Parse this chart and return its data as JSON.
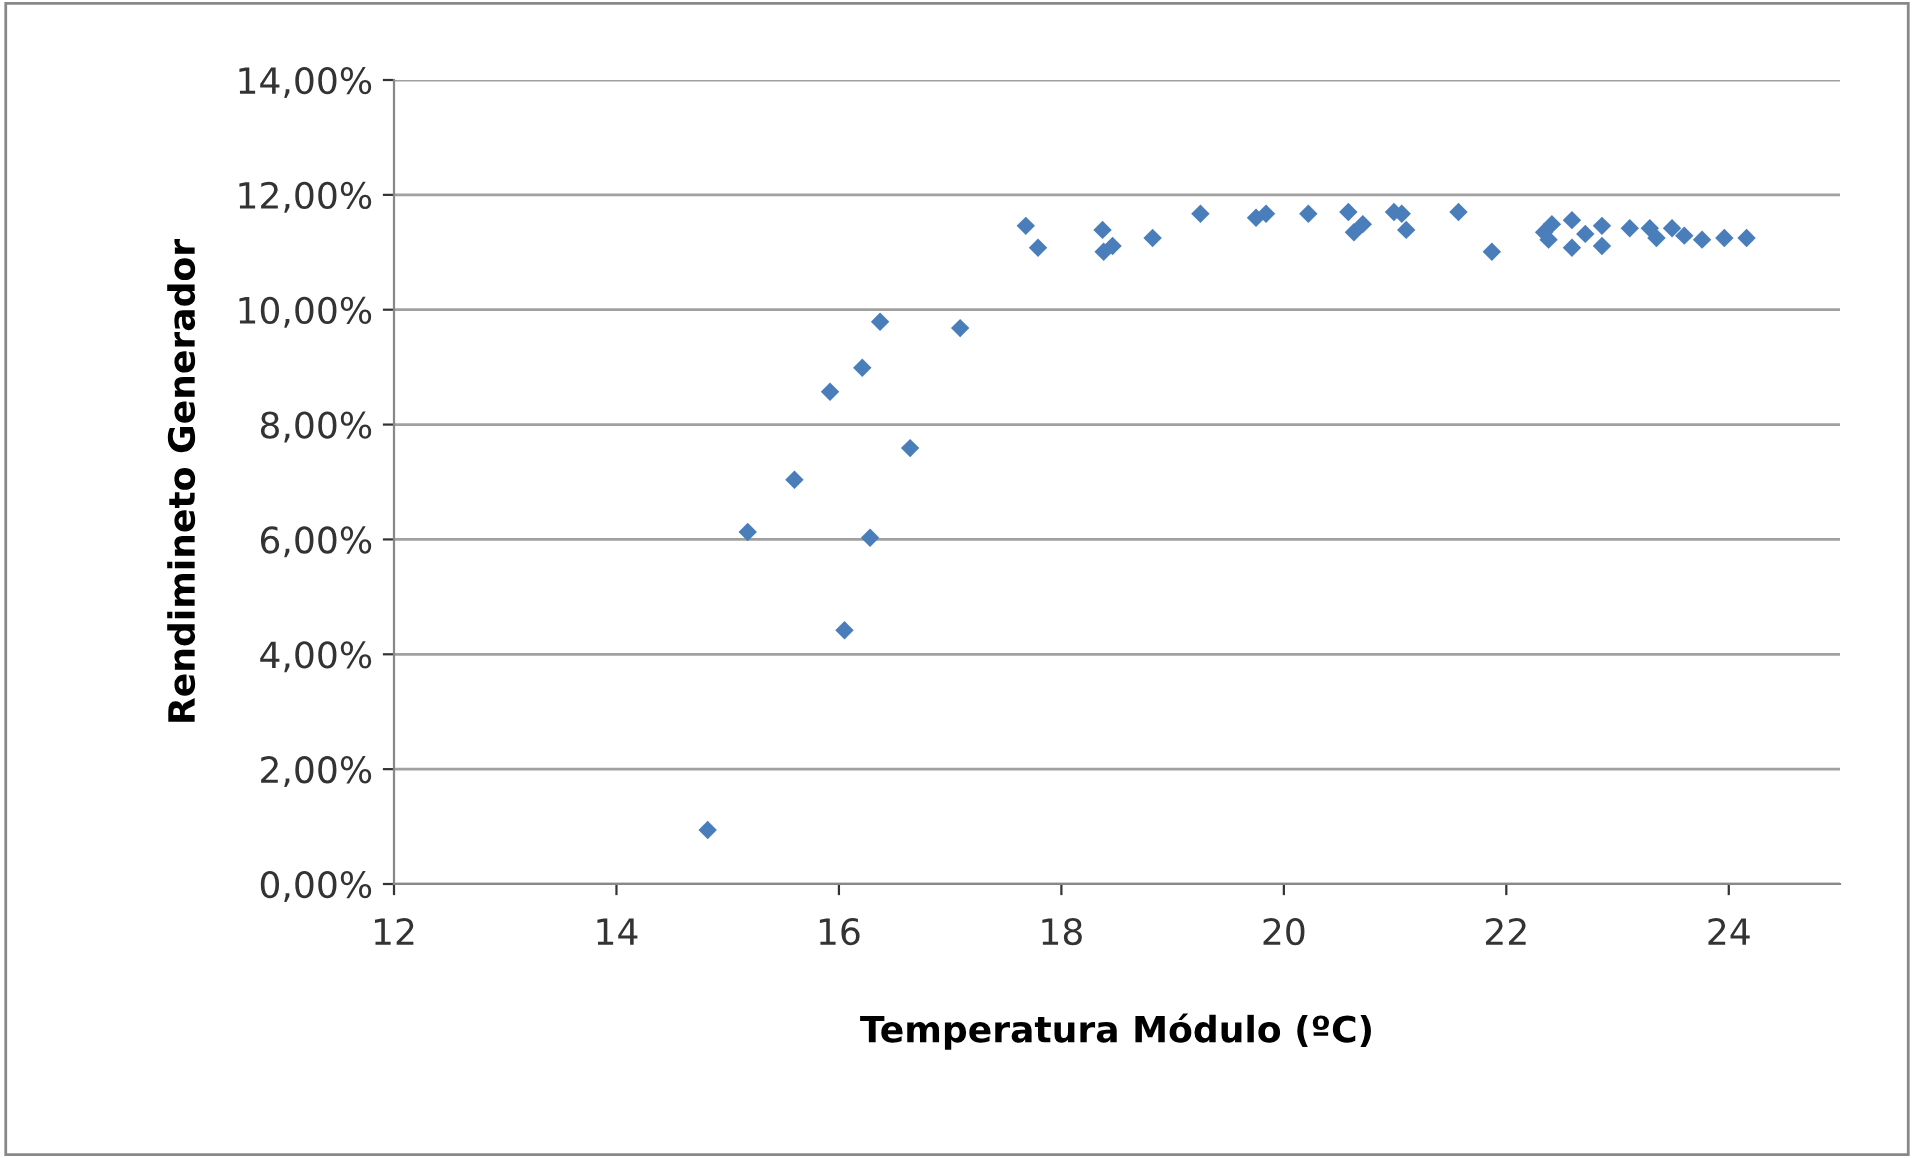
{
  "chart_data": {
    "type": "scatter",
    "xlabel": "Temperatura Módulo (ºC)",
    "ylabel": "Rendimineto Generador",
    "marker": "diamond",
    "grid": "y",
    "legend": false,
    "xlim": [
      12,
      25
    ],
    "xticks": [
      12,
      14,
      16,
      18,
      20,
      22,
      24
    ],
    "ylim": [
      0,
      14
    ],
    "yticks": [
      {
        "value": 0,
        "label": "0,00%"
      },
      {
        "value": 2,
        "label": "2,00%"
      },
      {
        "value": 4,
        "label": "4,00%"
      },
      {
        "value": 6,
        "label": "6,00%"
      },
      {
        "value": 8,
        "label": "8,00%"
      },
      {
        "value": 10,
        "label": "10,00%"
      },
      {
        "value": 12,
        "label": "12,00%"
      },
      {
        "value": 14,
        "label": "14,00%"
      }
    ],
    "series": [
      {
        "color": "#4a7ebb",
        "x": [
          14.82,
          15.18,
          15.6,
          15.92,
          16.05,
          16.21,
          16.28,
          16.37,
          16.64,
          17.09,
          17.68,
          17.79,
          18.37,
          18.38,
          18.46,
          18.82,
          19.25,
          19.75,
          19.84,
          20.22,
          20.58,
          20.63,
          20.71,
          20.99,
          21.06,
          21.1,
          21.57,
          21.87,
          22.34,
          22.41,
          22.38,
          22.59,
          22.59,
          22.71,
          22.86,
          22.86,
          23.11,
          23.29,
          23.35,
          23.49,
          23.6,
          23.76,
          23.96,
          24.16
        ],
        "values": [
          0.94,
          6.13,
          7.04,
          8.57,
          4.42,
          8.99,
          6.03,
          9.79,
          7.59,
          9.68,
          11.46,
          11.08,
          11.39,
          11.01,
          11.11,
          11.25,
          11.67,
          11.6,
          11.67,
          11.67,
          11.7,
          11.35,
          11.49,
          11.7,
          11.67,
          11.39,
          11.7,
          11.01,
          11.35,
          11.49,
          11.22,
          11.56,
          11.08,
          11.32,
          11.46,
          11.11,
          11.42,
          11.42,
          11.25,
          11.42,
          11.29,
          11.22,
          11.25,
          11.25
        ]
      }
    ]
  }
}
